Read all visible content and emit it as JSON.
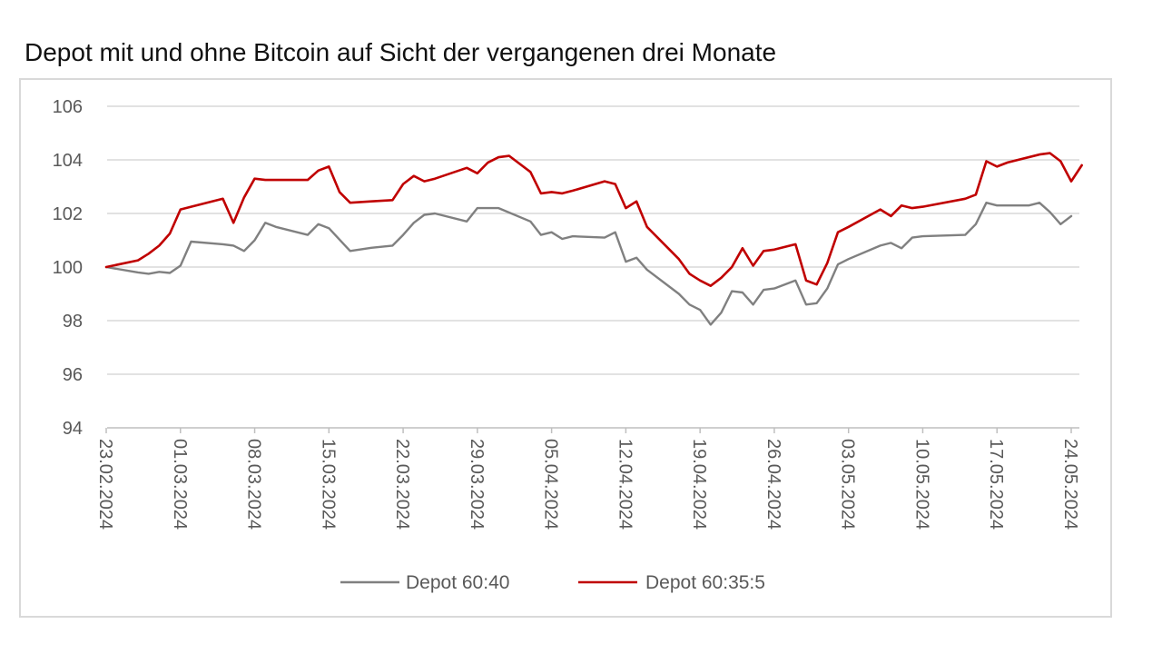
{
  "title": "Depot mit und ohne Bitcoin auf Sicht der vergangenen drei Monate",
  "chart_data": {
    "type": "line",
    "title": "Depot mit und ohne Bitcoin auf Sicht der vergangenen drei Monate",
    "xlabel": "",
    "ylabel": "",
    "ylim": [
      94,
      106
    ],
    "yticks": [
      "94",
      "96",
      "98",
      "100",
      "102",
      "104",
      "106"
    ],
    "xlim": [
      "2024-02-23",
      "2024-05-24"
    ],
    "xtick_labels": [
      "23.02.2024",
      "01.03.2024",
      "08.03.2024",
      "15.03.2024",
      "22.03.2024",
      "29.03.2024",
      "05.04.2024",
      "12.04.2024",
      "19.04.2024",
      "26.04.2024",
      "03.05.2024",
      "10.05.2024",
      "17.05.2024",
      "24.05.2024"
    ],
    "grid": true,
    "legend_position": "bottom",
    "series": [
      {
        "name": "Depot 60:40",
        "color": "#808080",
        "points": [
          [
            "2024-02-23",
            100.0
          ],
          [
            "2024-02-26",
            99.8
          ],
          [
            "2024-02-27",
            99.75
          ],
          [
            "2024-02-28",
            99.82
          ],
          [
            "2024-02-29",
            99.78
          ],
          [
            "2024-03-01",
            100.05
          ],
          [
            "2024-03-02",
            100.95
          ],
          [
            "2024-03-05",
            100.85
          ],
          [
            "2024-03-06",
            100.8
          ],
          [
            "2024-03-07",
            100.6
          ],
          [
            "2024-03-08",
            101.0
          ],
          [
            "2024-03-09",
            101.65
          ],
          [
            "2024-03-10",
            101.5
          ],
          [
            "2024-03-13",
            101.2
          ],
          [
            "2024-03-14",
            101.6
          ],
          [
            "2024-03-15",
            101.45
          ],
          [
            "2024-03-17",
            100.6
          ],
          [
            "2024-03-19",
            100.72
          ],
          [
            "2024-03-21",
            100.8
          ],
          [
            "2024-03-22",
            101.2
          ],
          [
            "2024-03-23",
            101.65
          ],
          [
            "2024-03-24",
            101.95
          ],
          [
            "2024-03-25",
            102.0
          ],
          [
            "2024-03-28",
            101.7
          ],
          [
            "2024-03-29",
            102.2
          ],
          [
            "2024-03-30",
            102.2
          ],
          [
            "2024-03-31",
            102.2
          ],
          [
            "2024-04-03",
            101.7
          ],
          [
            "2024-04-04",
            101.2
          ],
          [
            "2024-04-05",
            101.3
          ],
          [
            "2024-04-06",
            101.05
          ],
          [
            "2024-04-07",
            101.15
          ],
          [
            "2024-04-10",
            101.1
          ],
          [
            "2024-04-11",
            101.3
          ],
          [
            "2024-04-12",
            100.2
          ],
          [
            "2024-04-13",
            100.35
          ],
          [
            "2024-04-14",
            99.9
          ],
          [
            "2024-04-17",
            99.0
          ],
          [
            "2024-04-18",
            98.6
          ],
          [
            "2024-04-19",
            98.4
          ],
          [
            "2024-04-20",
            97.85
          ],
          [
            "2024-04-21",
            98.3
          ],
          [
            "2024-04-22",
            99.1
          ],
          [
            "2024-04-23",
            99.05
          ],
          [
            "2024-04-24",
            98.6
          ],
          [
            "2024-04-25",
            99.15
          ],
          [
            "2024-04-26",
            99.2
          ],
          [
            "2024-04-28",
            99.5
          ],
          [
            "2024-04-29",
            98.6
          ],
          [
            "2024-04-30",
            98.65
          ],
          [
            "2024-05-01",
            99.2
          ],
          [
            "2024-05-02",
            100.1
          ],
          [
            "2024-05-03",
            100.3
          ],
          [
            "2024-05-06",
            100.8
          ],
          [
            "2024-05-07",
            100.9
          ],
          [
            "2024-05-08",
            100.7
          ],
          [
            "2024-05-09",
            101.1
          ],
          [
            "2024-05-10",
            101.15
          ],
          [
            "2024-05-14",
            101.2
          ],
          [
            "2024-05-15",
            101.6
          ],
          [
            "2024-05-16",
            102.4
          ],
          [
            "2024-05-17",
            102.3
          ],
          [
            "2024-05-20",
            102.3
          ],
          [
            "2024-05-21",
            102.4
          ],
          [
            "2024-05-22",
            102.05
          ],
          [
            "2024-05-23",
            101.6
          ],
          [
            "2024-05-24",
            101.9
          ]
        ]
      },
      {
        "name": "Depot 60:35:5",
        "color": "#c00000",
        "points": [
          [
            "2024-02-23",
            100.0
          ],
          [
            "2024-02-26",
            100.25
          ],
          [
            "2024-02-27",
            100.5
          ],
          [
            "2024-02-28",
            100.8
          ],
          [
            "2024-02-29",
            101.25
          ],
          [
            "2024-03-01",
            102.15
          ],
          [
            "2024-03-02",
            102.25
          ],
          [
            "2024-03-05",
            102.55
          ],
          [
            "2024-03-06",
            101.65
          ],
          [
            "2024-03-07",
            102.6
          ],
          [
            "2024-03-08",
            103.3
          ],
          [
            "2024-03-09",
            103.25
          ],
          [
            "2024-03-10",
            103.25
          ],
          [
            "2024-03-13",
            103.25
          ],
          [
            "2024-03-14",
            103.6
          ],
          [
            "2024-03-15",
            103.75
          ],
          [
            "2024-03-16",
            102.8
          ],
          [
            "2024-03-17",
            102.4
          ],
          [
            "2024-03-19",
            102.45
          ],
          [
            "2024-03-21",
            102.5
          ],
          [
            "2024-03-22",
            103.1
          ],
          [
            "2024-03-23",
            103.4
          ],
          [
            "2024-03-24",
            103.2
          ],
          [
            "2024-03-25",
            103.3
          ],
          [
            "2024-03-28",
            103.7
          ],
          [
            "2024-03-29",
            103.5
          ],
          [
            "2024-03-30",
            103.9
          ],
          [
            "2024-03-31",
            104.1
          ],
          [
            "2024-04-01",
            104.15
          ],
          [
            "2024-04-03",
            103.55
          ],
          [
            "2024-04-04",
            102.75
          ],
          [
            "2024-04-05",
            102.8
          ],
          [
            "2024-04-06",
            102.75
          ],
          [
            "2024-04-07",
            102.85
          ],
          [
            "2024-04-10",
            103.2
          ],
          [
            "2024-04-11",
            103.1
          ],
          [
            "2024-04-12",
            102.2
          ],
          [
            "2024-04-13",
            102.45
          ],
          [
            "2024-04-14",
            101.5
          ],
          [
            "2024-04-17",
            100.3
          ],
          [
            "2024-04-18",
            99.75
          ],
          [
            "2024-04-19",
            99.5
          ],
          [
            "2024-04-20",
            99.3
          ],
          [
            "2024-04-21",
            99.6
          ],
          [
            "2024-04-22",
            100.0
          ],
          [
            "2024-04-23",
            100.7
          ],
          [
            "2024-04-24",
            100.05
          ],
          [
            "2024-04-25",
            100.6
          ],
          [
            "2024-04-26",
            100.65
          ],
          [
            "2024-04-28",
            100.85
          ],
          [
            "2024-04-29",
            99.5
          ],
          [
            "2024-04-30",
            99.35
          ],
          [
            "2024-05-01",
            100.15
          ],
          [
            "2024-05-02",
            101.3
          ],
          [
            "2024-05-03",
            101.5
          ],
          [
            "2024-05-06",
            102.15
          ],
          [
            "2024-05-07",
            101.9
          ],
          [
            "2024-05-08",
            102.3
          ],
          [
            "2024-05-09",
            102.2
          ],
          [
            "2024-05-10",
            102.25
          ],
          [
            "2024-05-14",
            102.55
          ],
          [
            "2024-05-15",
            102.7
          ],
          [
            "2024-05-16",
            103.95
          ],
          [
            "2024-05-17",
            103.75
          ],
          [
            "2024-05-18",
            103.9
          ],
          [
            "2024-05-21",
            104.2
          ],
          [
            "2024-05-22",
            104.25
          ],
          [
            "2024-05-23",
            103.95
          ],
          [
            "2024-05-24",
            103.2
          ],
          [
            "2024-05-25",
            103.8
          ]
        ]
      }
    ]
  }
}
